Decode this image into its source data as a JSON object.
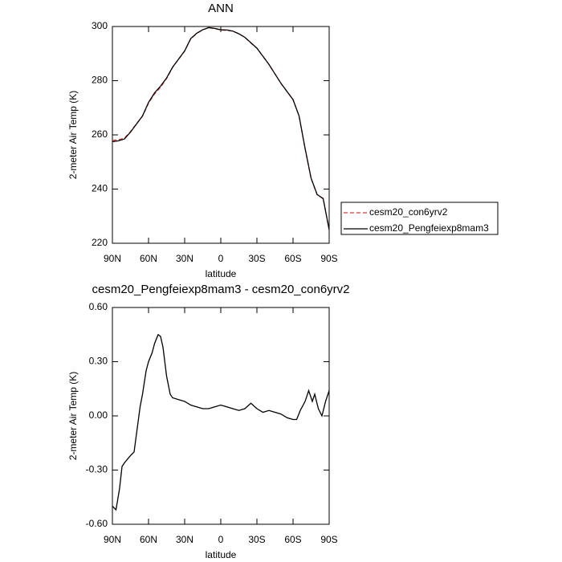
{
  "chart_data": [
    {
      "type": "line",
      "title": "ANN",
      "x_label": "latitude",
      "y_label": "2-meter Air Temp (K)",
      "x": [
        90,
        85,
        80,
        75,
        70,
        65,
        60,
        55,
        50,
        45,
        40,
        35,
        30,
        25,
        20,
        15,
        10,
        5,
        0,
        -5,
        -10,
        -15,
        -20,
        -25,
        -30,
        -35,
        -40,
        -45,
        -50,
        -55,
        -60,
        -65,
        -70,
        -75,
        -80,
        -85,
        -90
      ],
      "series": [
        {
          "name": "cesm20_con6yrv2",
          "color": "#e0393b",
          "line_style": "dashed",
          "values": [
            258.0,
            258.2,
            258.8,
            261.2,
            264.1,
            266.9,
            271.7,
            275.1,
            277.6,
            280.8,
            284.9,
            287.9,
            290.9,
            295.4,
            297.4,
            298.8,
            299.6,
            299.2,
            298.7,
            298.6,
            298.3,
            297.3,
            296,
            293.9,
            292,
            289,
            286,
            282.5,
            279,
            276,
            273,
            267,
            254.9,
            243.9,
            237.9,
            236.5,
            224.9
          ]
        },
        {
          "name": "cesm20_Pengfeiexp8mam3",
          "color": "#000000",
          "line_style": "solid",
          "values": [
            257.5,
            257.8,
            258.5,
            261,
            264,
            267,
            272,
            275.5,
            278,
            281,
            285,
            288,
            291,
            295.5,
            297.5,
            298.8,
            299.6,
            299.3,
            298.8,
            298.7,
            298.3,
            297.3,
            296,
            294,
            292,
            289,
            286,
            282.5,
            279,
            276,
            273,
            267,
            255,
            244,
            238,
            236.5,
            225
          ]
        }
      ],
      "xlim": [
        90,
        -90
      ],
      "xticks": [
        {
          "value": 90,
          "label": "90N"
        },
        {
          "value": 60,
          "label": "60N"
        },
        {
          "value": 30,
          "label": "30N"
        },
        0,
        {
          "value": -30,
          "label": "30S"
        },
        {
          "value": -60,
          "label": "60S"
        },
        {
          "value": -90,
          "label": "90S"
        }
      ],
      "ylim": [
        220,
        300
      ],
      "yticks": [
        220,
        240,
        260,
        280,
        300
      ],
      "legend": "right"
    },
    {
      "type": "line",
      "title": "cesm20_Pengfeiexp8mam3 - cesm20_con6yrv2",
      "x_label": "latitude",
      "y_label": "2-meter Air Temp (K)",
      "x": [
        90,
        87,
        84,
        82,
        80,
        75,
        72,
        70,
        67,
        65,
        62,
        60,
        57,
        55,
        52,
        50,
        48,
        45,
        42,
        40,
        35,
        30,
        25,
        20,
        15,
        10,
        5,
        0,
        -5,
        -10,
        -15,
        -20,
        -25,
        -30,
        -35,
        -40,
        -45,
        -50,
        -55,
        -60,
        -63,
        -66,
        -70,
        -73,
        -76,
        -78,
        -81,
        -84,
        -87,
        -90
      ],
      "series": [
        {
          "name": null,
          "color": "#000000",
          "line_style": "solid",
          "values": [
            -0.5,
            -0.52,
            -0.4,
            -0.28,
            -0.26,
            -0.22,
            -0.2,
            -0.1,
            0.05,
            0.12,
            0.25,
            0.3,
            0.35,
            0.4,
            0.45,
            0.44,
            0.38,
            0.22,
            0.12,
            0.1,
            0.09,
            0.08,
            0.06,
            0.05,
            0.04,
            0.04,
            0.05,
            0.06,
            0.05,
            0.04,
            0.03,
            0.04,
            0.07,
            0.04,
            0.02,
            0.03,
            0.02,
            0.01,
            -0.01,
            -0.02,
            -0.02,
            0.03,
            0.08,
            0.14,
            0.08,
            0.12,
            0.04,
            0.0,
            0.08,
            0.14
          ]
        }
      ],
      "xlim": [
        90,
        -90
      ],
      "xticks": [
        {
          "value": 90,
          "label": "90N"
        },
        {
          "value": 60,
          "label": "60N"
        },
        {
          "value": 30,
          "label": "30N"
        },
        0,
        {
          "value": -30,
          "label": "30S"
        },
        {
          "value": -60,
          "label": "60S"
        },
        {
          "value": -90,
          "label": "90S"
        }
      ],
      "ylim": [
        -0.6,
        0.6
      ],
      "yticks": [
        {
          "value": -0.6,
          "label": "-0.60"
        },
        {
          "value": -0.3,
          "label": "-0.30"
        },
        {
          "value": 0,
          "label": "0.00"
        },
        {
          "value": 0.3,
          "label": "0.30"
        },
        {
          "value": 0.6,
          "label": "0.60"
        }
      ]
    }
  ]
}
